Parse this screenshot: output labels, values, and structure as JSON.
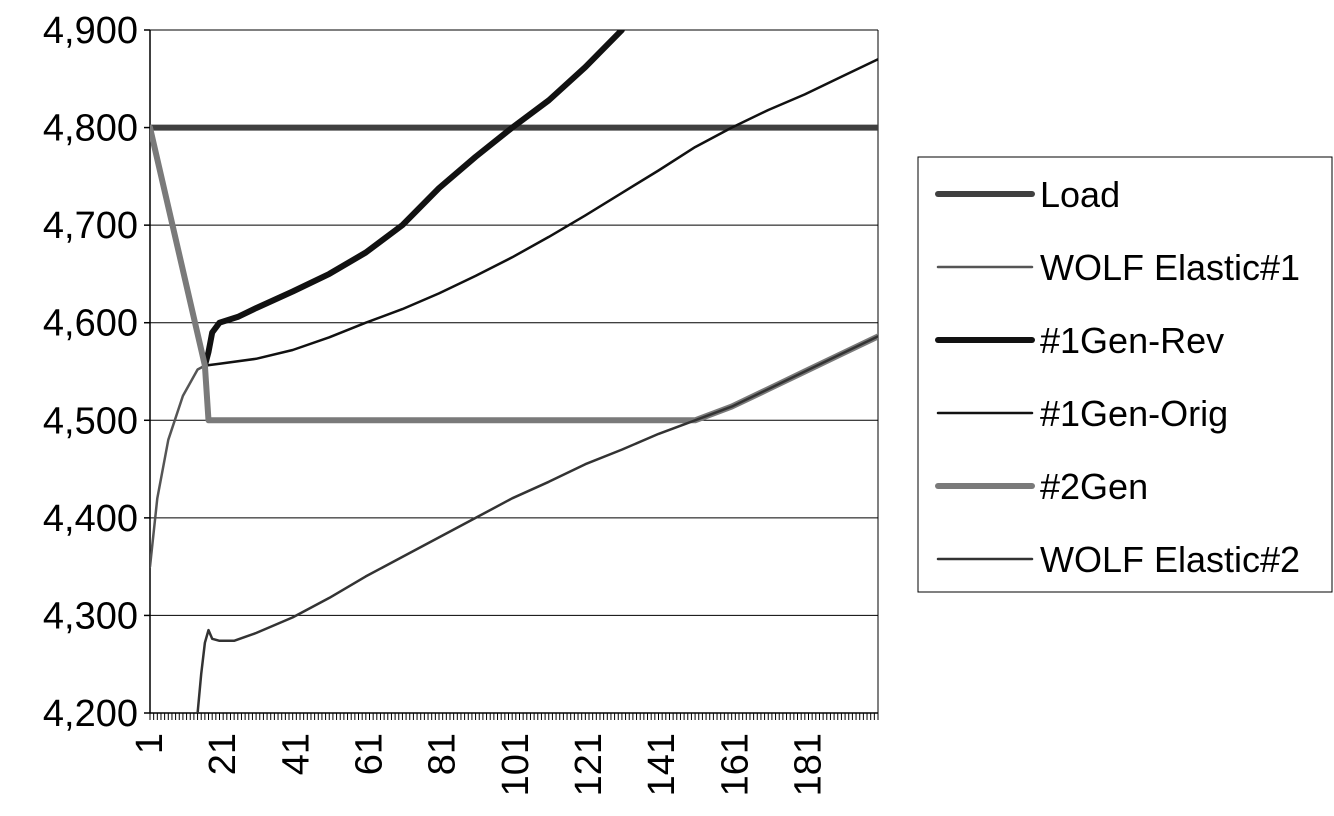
{
  "chart_data": {
    "type": "line",
    "title": "",
    "xlabel": "",
    "ylabel": "",
    "xlim": [
      1,
      200
    ],
    "ylim": [
      4200,
      4900
    ],
    "grid": "horizontal",
    "legend_position": "right",
    "y_ticks": [
      "4,200",
      "4,300",
      "4,400",
      "4,500",
      "4,600",
      "4,700",
      "4,800",
      "4,900"
    ],
    "y_tick_values": [
      4200,
      4300,
      4400,
      4500,
      4600,
      4700,
      4800,
      4900
    ],
    "x_ticks": [
      "1",
      "21",
      "41",
      "61",
      "81",
      "101",
      "121",
      "141",
      "161",
      "181"
    ],
    "x_tick_values": [
      1,
      21,
      41,
      61,
      81,
      101,
      121,
      141,
      161,
      181
    ],
    "series": [
      {
        "name": "Load",
        "color": "#404040",
        "width": 6,
        "points": [
          [
            1,
            4800
          ],
          [
            200,
            4800
          ]
        ]
      },
      {
        "name": "WOLF Elastic#1",
        "color": "#555555",
        "width": 2.5,
        "points": [
          [
            1,
            4350
          ],
          [
            3,
            4420
          ],
          [
            6,
            4480
          ],
          [
            10,
            4525
          ],
          [
            14,
            4552
          ],
          [
            16,
            4556
          ]
        ]
      },
      {
        "name": "#1Gen-Rev",
        "color": "#111111",
        "width": 6,
        "points": [
          [
            16,
            4556
          ],
          [
            17,
            4570
          ],
          [
            18,
            4590
          ],
          [
            20,
            4600
          ],
          [
            25,
            4606
          ],
          [
            30,
            4615
          ],
          [
            40,
            4632
          ],
          [
            50,
            4650
          ],
          [
            60,
            4672
          ],
          [
            70,
            4700
          ],
          [
            80,
            4738
          ],
          [
            90,
            4770
          ],
          [
            100,
            4800
          ],
          [
            110,
            4828
          ],
          [
            120,
            4862
          ],
          [
            130,
            4900
          ]
        ]
      },
      {
        "name": "#1Gen-Orig",
        "color": "#111111",
        "width": 2.5,
        "points": [
          [
            16,
            4556
          ],
          [
            20,
            4558
          ],
          [
            30,
            4563
          ],
          [
            40,
            4572
          ],
          [
            50,
            4585
          ],
          [
            60,
            4600
          ],
          [
            70,
            4614
          ],
          [
            80,
            4630
          ],
          [
            90,
            4648
          ],
          [
            100,
            4667
          ],
          [
            110,
            4688
          ],
          [
            120,
            4710
          ],
          [
            130,
            4733
          ],
          [
            140,
            4756
          ],
          [
            150,
            4780
          ],
          [
            160,
            4800
          ],
          [
            170,
            4818
          ],
          [
            180,
            4834
          ],
          [
            190,
            4852
          ],
          [
            200,
            4870
          ]
        ]
      },
      {
        "name": "#2Gen",
        "color": "#7a7a7a",
        "width": 6,
        "points": [
          [
            1,
            4800
          ],
          [
            16,
            4556
          ],
          [
            17,
            4500
          ],
          [
            150,
            4500
          ],
          [
            160,
            4514
          ],
          [
            170,
            4532
          ],
          [
            180,
            4550
          ],
          [
            190,
            4568
          ],
          [
            200,
            4586
          ]
        ]
      },
      {
        "name": "WOLF Elastic#2",
        "color": "#333333",
        "width": 2.5,
        "points": [
          [
            14,
            4200
          ],
          [
            15,
            4240
          ],
          [
            16,
            4272
          ],
          [
            17,
            4285
          ],
          [
            18,
            4276
          ],
          [
            20,
            4274
          ],
          [
            24,
            4274
          ],
          [
            30,
            4282
          ],
          [
            40,
            4298
          ],
          [
            50,
            4318
          ],
          [
            60,
            4340
          ],
          [
            70,
            4360
          ],
          [
            80,
            4380
          ],
          [
            90,
            4400
          ],
          [
            100,
            4420
          ],
          [
            110,
            4437
          ],
          [
            120,
            4455
          ],
          [
            130,
            4470
          ],
          [
            140,
            4486
          ],
          [
            150,
            4500
          ],
          [
            160,
            4514
          ],
          [
            170,
            4532
          ],
          [
            180,
            4550
          ],
          [
            190,
            4568
          ],
          [
            200,
            4586
          ]
        ]
      }
    ]
  }
}
